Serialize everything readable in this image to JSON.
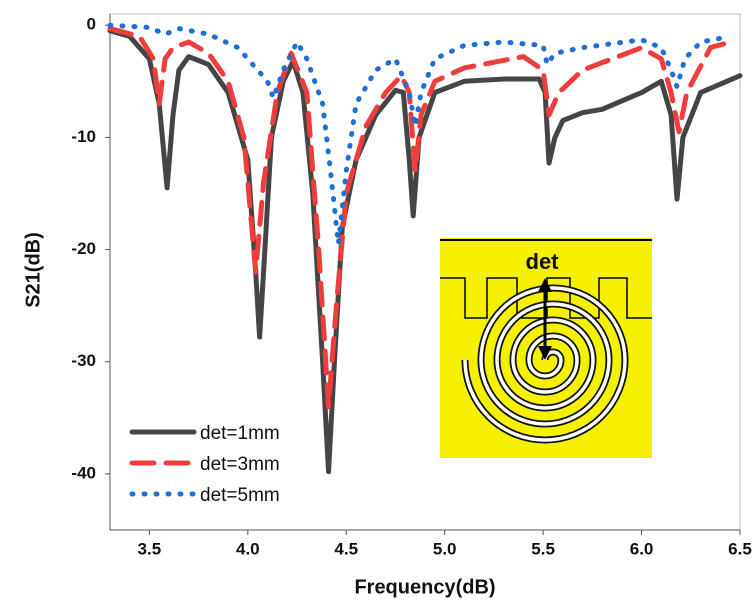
{
  "chart_data": {
    "type": "line",
    "x_label": "Frequency(dB)",
    "y_label": "S21(dB)",
    "xlim": [
      3.3,
      6.5
    ],
    "ylim": [
      -45,
      1
    ],
    "xticks": [
      3.5,
      {
        "value": 4,
        "label": "4.0"
      },
      4.5,
      {
        "value": 5,
        "label": "5.0"
      },
      5.5,
      {
        "value": 6,
        "label": "6.0"
      },
      6.5
    ],
    "yticks": [
      0,
      -10,
      -20,
      -30,
      -40
    ],
    "legend": "lower left",
    "inset_label": "det",
    "series": [
      {
        "name": "det=1mm",
        "color": "#454545",
        "style": "solid",
        "x": [
          3.3,
          3.4,
          3.5,
          3.55,
          3.59,
          3.62,
          3.65,
          3.7,
          3.8,
          3.9,
          4.0,
          4.04,
          4.06,
          4.08,
          4.12,
          4.18,
          4.23,
          4.28,
          4.33,
          4.38,
          4.41,
          4.44,
          4.48,
          4.55,
          4.65,
          4.75,
          4.79,
          4.82,
          4.84,
          4.87,
          4.95,
          5.1,
          5.3,
          5.48,
          5.51,
          5.53,
          5.56,
          5.6,
          5.7,
          5.8,
          6.0,
          6.1,
          6.15,
          6.18,
          6.21,
          6.3,
          6.5
        ],
        "values": [
          -0.5,
          -1,
          -3,
          -7,
          -14.5,
          -8,
          -4,
          -2.8,
          -3.5,
          -6,
          -12,
          -22,
          -27.8,
          -22,
          -10,
          -5,
          -3.2,
          -6,
          -15,
          -30,
          -39.8,
          -30,
          -18,
          -12,
          -8,
          -5.8,
          -6,
          -12,
          -17,
          -10,
          -6,
          -5,
          -4.8,
          -4.8,
          -6,
          -12.3,
          -10,
          -8.5,
          -7.8,
          -7.5,
          -6,
          -5,
          -8,
          -15.5,
          -10,
          -6,
          -4.5
        ]
      },
      {
        "name": "det=3mm",
        "color": "#ee3d3a",
        "style": "dashed",
        "x": [
          3.3,
          3.45,
          3.52,
          3.55,
          3.58,
          3.62,
          3.7,
          3.8,
          3.9,
          3.98,
          4.04,
          4.08,
          4.15,
          4.22,
          4.3,
          4.36,
          4.41,
          4.45,
          4.5,
          4.6,
          4.7,
          4.78,
          4.82,
          4.85,
          4.88,
          4.95,
          5.1,
          5.4,
          5.5,
          5.53,
          5.58,
          5.7,
          6.0,
          6.1,
          6.15,
          6.19,
          6.23,
          6.35,
          6.45
        ],
        "values": [
          -0.3,
          -1,
          -3,
          -7,
          -3,
          -2,
          -1.5,
          -2.5,
          -5,
          -10,
          -22,
          -14,
          -6,
          -2.5,
          -6,
          -20,
          -34,
          -25,
          -15,
          -9,
          -6,
          -4.5,
          -6,
          -13,
          -8,
          -5,
          -3.8,
          -2.8,
          -4,
          -8,
          -6,
          -4,
          -2,
          -3,
          -6,
          -9.5,
          -6,
          -2,
          -1.5
        ]
      },
      {
        "name": "det=5mm",
        "color": "#1f6fd6",
        "style": "dotted",
        "x": [
          3.3,
          3.5,
          3.58,
          3.65,
          3.8,
          3.95,
          4.05,
          4.1,
          4.13,
          4.18,
          4.25,
          4.3,
          4.38,
          4.42,
          4.46,
          4.5,
          4.55,
          4.65,
          4.75,
          4.82,
          4.85,
          4.88,
          4.95,
          5.1,
          5.3,
          5.5,
          5.52,
          5.56,
          5.7,
          6.0,
          6.1,
          6.15,
          6.18,
          6.22,
          6.3,
          6.45
        ],
        "values": [
          0,
          -0.2,
          -0.8,
          -0.3,
          -0.8,
          -2,
          -4,
          -5,
          -6.5,
          -4,
          -1.5,
          -3,
          -7,
          -13,
          -19.5,
          -13,
          -7,
          -4,
          -3,
          -6,
          -9,
          -6,
          -3,
          -1.8,
          -1.5,
          -1.8,
          -3.5,
          -2.5,
          -2,
          -1.3,
          -2,
          -4,
          -5.5,
          -3,
          -1.5,
          -1
        ]
      }
    ]
  }
}
